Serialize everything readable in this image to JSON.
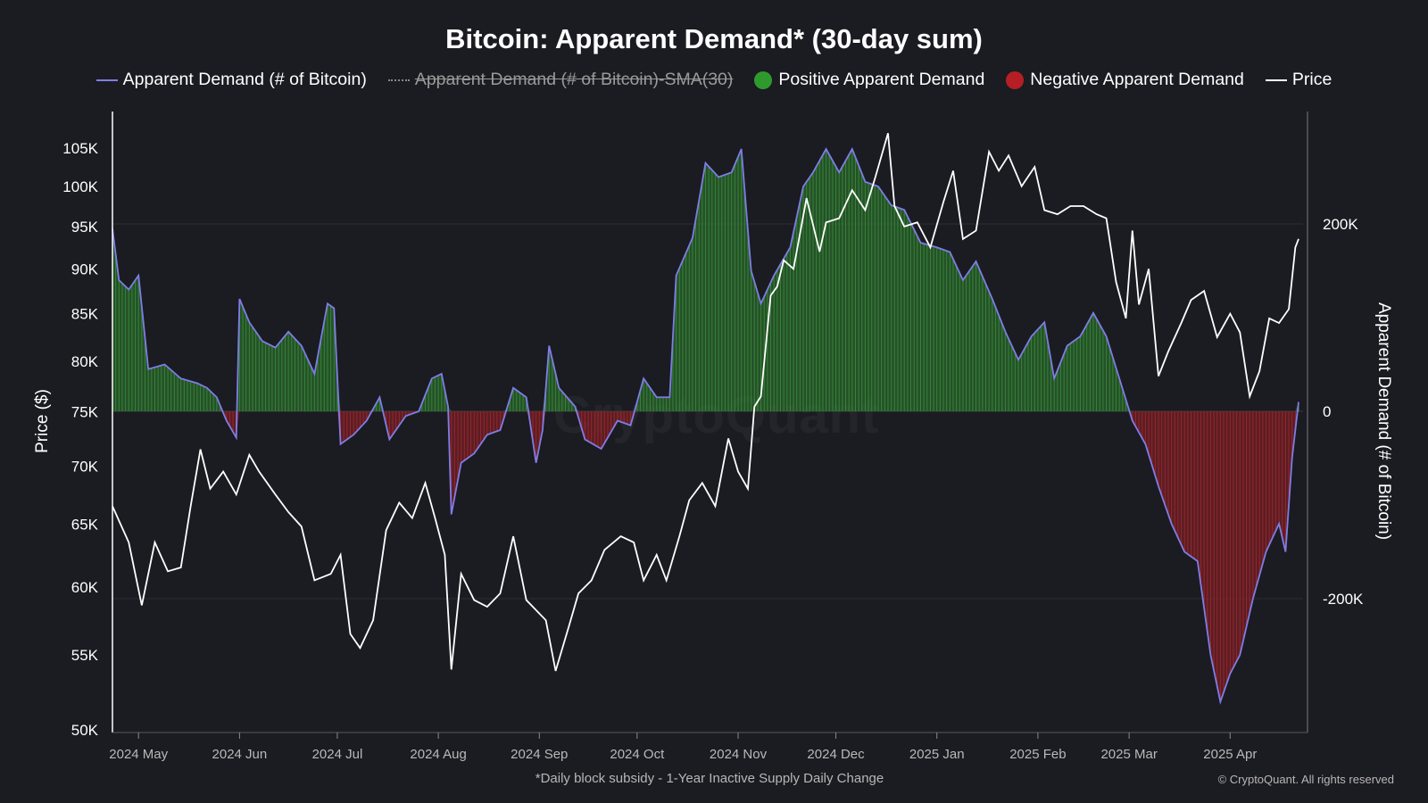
{
  "chart_data": {
    "type": "line",
    "title": "Bitcoin: Apparent Demand* (30-day sum)",
    "legend": {
      "placement": "top-center",
      "items": [
        {
          "label": "Apparent Demand (# of Bitcoin)",
          "kind": "line",
          "color": "#7f7de6",
          "enabled": true
        },
        {
          "label": "Apparent Demand (# of Bitcoin)-SMA(30)",
          "kind": "dashed",
          "color": "#8a8a8a",
          "enabled": false
        },
        {
          "label": "Positive Apparent Demand",
          "kind": "dot",
          "color": "#2e9a2e",
          "enabled": true
        },
        {
          "label": "Negative Apparent Demand",
          "kind": "dot",
          "color": "#b51f24",
          "enabled": true
        },
        {
          "label": "Price",
          "kind": "line",
          "color": "#ffffff",
          "enabled": true
        }
      ]
    },
    "x_tick_labels": [
      "2024 May",
      "2024 Jun",
      "2024 Jul",
      "2024 Aug",
      "2024 Sep",
      "2024 Oct",
      "2024 Nov",
      "2024 Dec",
      "2025 Jan",
      "2025 Feb",
      "2025 Mar",
      "2025 Apr"
    ],
    "x_tick_dates": [
      "2024-05-01",
      "2024-06-01",
      "2024-07-01",
      "2024-08-01",
      "2024-09-01",
      "2024-10-01",
      "2024-11-01",
      "2024-12-01",
      "2025-01-01",
      "2025-02-01",
      "2025-03-01",
      "2025-04-01"
    ],
    "x_range": [
      "2024-04-23",
      "2025-04-22"
    ],
    "left_axis": {
      "label": "Price ($)",
      "scale": "log",
      "range": [
        50000,
        110000
      ],
      "ticks": [
        50000,
        55000,
        60000,
        65000,
        70000,
        75000,
        80000,
        85000,
        90000,
        95000,
        100000,
        105000
      ],
      "tick_labels": [
        "50K",
        "55K",
        "60K",
        "65K",
        "70K",
        "75K",
        "80K",
        "85K",
        "90K",
        "95K",
        "100K",
        "105K"
      ]
    },
    "right_axis": {
      "label": "Apparent Demand (# of Bitcoin)",
      "scale": "linear",
      "range": [
        -340000,
        320000
      ],
      "ticks": [
        200000,
        0,
        -200000
      ],
      "tick_labels": [
        "200K",
        "0",
        "-200K"
      ]
    },
    "grid": true,
    "series": [
      {
        "name": "Price",
        "axis": "left",
        "color": "#ffffff",
        "points": [
          [
            "2024-04-23",
            66500
          ],
          [
            "2024-04-28",
            63500
          ],
          [
            "2024-05-02",
            58600
          ],
          [
            "2024-05-06",
            63500
          ],
          [
            "2024-05-10",
            61200
          ],
          [
            "2024-05-14",
            61500
          ],
          [
            "2024-05-17",
            66500
          ],
          [
            "2024-05-20",
            71500
          ],
          [
            "2024-05-23",
            68000
          ],
          [
            "2024-05-27",
            69500
          ],
          [
            "2024-05-31",
            67500
          ],
          [
            "2024-06-04",
            71000
          ],
          [
            "2024-06-07",
            69500
          ],
          [
            "2024-06-12",
            67500
          ],
          [
            "2024-06-16",
            66000
          ],
          [
            "2024-06-20",
            64800
          ],
          [
            "2024-06-24",
            60500
          ],
          [
            "2024-06-29",
            61000
          ],
          [
            "2024-07-02",
            62500
          ],
          [
            "2024-07-05",
            56500
          ],
          [
            "2024-07-08",
            55500
          ],
          [
            "2024-07-12",
            57500
          ],
          [
            "2024-07-16",
            64500
          ],
          [
            "2024-07-20",
            66800
          ],
          [
            "2024-07-24",
            65500
          ],
          [
            "2024-07-28",
            68500
          ],
          [
            "2024-07-31",
            65500
          ],
          [
            "2024-08-03",
            62500
          ],
          [
            "2024-08-05",
            54000
          ],
          [
            "2024-08-08",
            61000
          ],
          [
            "2024-08-12",
            59000
          ],
          [
            "2024-08-16",
            58500
          ],
          [
            "2024-08-20",
            59500
          ],
          [
            "2024-08-24",
            64000
          ],
          [
            "2024-08-28",
            59000
          ],
          [
            "2024-09-03",
            57500
          ],
          [
            "2024-09-06",
            53900
          ],
          [
            "2024-09-10",
            57000
          ],
          [
            "2024-09-13",
            59500
          ],
          [
            "2024-09-17",
            60500
          ],
          [
            "2024-09-21",
            62900
          ],
          [
            "2024-09-26",
            64000
          ],
          [
            "2024-09-30",
            63500
          ],
          [
            "2024-10-03",
            60500
          ],
          [
            "2024-10-07",
            62500
          ],
          [
            "2024-10-10",
            60500
          ],
          [
            "2024-10-14",
            64000
          ],
          [
            "2024-10-17",
            67000
          ],
          [
            "2024-10-21",
            68500
          ],
          [
            "2024-10-25",
            66500
          ],
          [
            "2024-10-29",
            72500
          ],
          [
            "2024-11-01",
            69500
          ],
          [
            "2024-11-04",
            68000
          ],
          [
            "2024-11-06",
            75500
          ],
          [
            "2024-11-08",
            76500
          ],
          [
            "2024-11-11",
            87000
          ],
          [
            "2024-11-13",
            88000
          ],
          [
            "2024-11-15",
            91000
          ],
          [
            "2024-11-18",
            90000
          ],
          [
            "2024-11-22",
            98500
          ],
          [
            "2024-11-26",
            92000
          ],
          [
            "2024-11-28",
            95500
          ],
          [
            "2024-12-02",
            96000
          ],
          [
            "2024-12-06",
            99500
          ],
          [
            "2024-12-10",
            97000
          ],
          [
            "2024-12-13",
            101000
          ],
          [
            "2024-12-17",
            107000
          ],
          [
            "2024-12-19",
            97500
          ],
          [
            "2024-12-22",
            95000
          ],
          [
            "2024-12-26",
            95500
          ],
          [
            "2024-12-30",
            92500
          ],
          [
            "2025-01-03",
            98000
          ],
          [
            "2025-01-06",
            102000
          ],
          [
            "2025-01-09",
            93500
          ],
          [
            "2025-01-13",
            94500
          ],
          [
            "2025-01-17",
            104500
          ],
          [
            "2025-01-20",
            102000
          ],
          [
            "2025-01-23",
            104000
          ],
          [
            "2025-01-27",
            100000
          ],
          [
            "2025-01-31",
            102500
          ],
          [
            "2025-02-03",
            97000
          ],
          [
            "2025-02-07",
            96500
          ],
          [
            "2025-02-11",
            97500
          ],
          [
            "2025-02-15",
            97500
          ],
          [
            "2025-02-19",
            96500
          ],
          [
            "2025-02-22",
            96000
          ],
          [
            "2025-02-25",
            88500
          ],
          [
            "2025-02-28",
            84500
          ],
          [
            "2025-03-02",
            94500
          ],
          [
            "2025-03-04",
            86000
          ],
          [
            "2025-03-07",
            90000
          ],
          [
            "2025-03-10",
            78500
          ],
          [
            "2025-03-13",
            81000
          ],
          [
            "2025-03-17",
            84000
          ],
          [
            "2025-03-20",
            86500
          ],
          [
            "2025-03-24",
            87500
          ],
          [
            "2025-03-28",
            82500
          ],
          [
            "2025-04-01",
            85000
          ],
          [
            "2025-04-04",
            83000
          ],
          [
            "2025-04-07",
            76500
          ],
          [
            "2025-04-10",
            79000
          ],
          [
            "2025-04-13",
            84500
          ],
          [
            "2025-04-16",
            84000
          ],
          [
            "2025-04-19",
            85500
          ],
          [
            "2025-04-21",
            92500
          ],
          [
            "2025-04-22",
            93500
          ]
        ]
      },
      {
        "name": "Apparent Demand (# of Bitcoin)",
        "axis": "right",
        "color": "#7f7de6",
        "points": [
          [
            "2024-04-23",
            195000
          ],
          [
            "2024-04-25",
            140000
          ],
          [
            "2024-04-28",
            130000
          ],
          [
            "2024-05-01",
            145000
          ],
          [
            "2024-05-04",
            45000
          ],
          [
            "2024-05-09",
            50000
          ],
          [
            "2024-05-14",
            35000
          ],
          [
            "2024-05-19",
            30000
          ],
          [
            "2024-05-22",
            25000
          ],
          [
            "2024-05-25",
            15000
          ],
          [
            "2024-05-28",
            -10000
          ],
          [
            "2024-05-31",
            -28000
          ],
          [
            "2024-06-01",
            120000
          ],
          [
            "2024-06-04",
            95000
          ],
          [
            "2024-06-08",
            75000
          ],
          [
            "2024-06-12",
            68000
          ],
          [
            "2024-06-16",
            85000
          ],
          [
            "2024-06-20",
            70000
          ],
          [
            "2024-06-24",
            40000
          ],
          [
            "2024-06-28",
            115000
          ],
          [
            "2024-06-30",
            110000
          ],
          [
            "2024-07-02",
            -35000
          ],
          [
            "2024-07-06",
            -25000
          ],
          [
            "2024-07-10",
            -10000
          ],
          [
            "2024-07-14",
            15000
          ],
          [
            "2024-07-17",
            -30000
          ],
          [
            "2024-07-22",
            -5000
          ],
          [
            "2024-07-26",
            0
          ],
          [
            "2024-07-30",
            35000
          ],
          [
            "2024-08-02",
            40000
          ],
          [
            "2024-08-04",
            5000
          ],
          [
            "2024-08-05",
            -110000
          ],
          [
            "2024-08-08",
            -55000
          ],
          [
            "2024-08-12",
            -45000
          ],
          [
            "2024-08-16",
            -25000
          ],
          [
            "2024-08-20",
            -20000
          ],
          [
            "2024-08-24",
            25000
          ],
          [
            "2024-08-28",
            15000
          ],
          [
            "2024-08-31",
            -55000
          ],
          [
            "2024-09-02",
            -20000
          ],
          [
            "2024-09-04",
            70000
          ],
          [
            "2024-09-07",
            25000
          ],
          [
            "2024-09-12",
            5000
          ],
          [
            "2024-09-15",
            -30000
          ],
          [
            "2024-09-20",
            -40000
          ],
          [
            "2024-09-25",
            -10000
          ],
          [
            "2024-09-29",
            -15000
          ],
          [
            "2024-10-03",
            35000
          ],
          [
            "2024-10-07",
            15000
          ],
          [
            "2024-10-11",
            15000
          ],
          [
            "2024-10-13",
            145000
          ],
          [
            "2024-10-18",
            185000
          ],
          [
            "2024-10-22",
            265000
          ],
          [
            "2024-10-26",
            250000
          ],
          [
            "2024-10-30",
            255000
          ],
          [
            "2024-11-02",
            280000
          ],
          [
            "2024-11-05",
            150000
          ],
          [
            "2024-11-08",
            115000
          ],
          [
            "2024-11-12",
            145000
          ],
          [
            "2024-11-17",
            175000
          ],
          [
            "2024-11-21",
            240000
          ],
          [
            "2024-11-24",
            255000
          ],
          [
            "2024-11-28",
            280000
          ],
          [
            "2024-12-02",
            255000
          ],
          [
            "2024-12-06",
            280000
          ],
          [
            "2024-12-10",
            245000
          ],
          [
            "2024-12-14",
            240000
          ],
          [
            "2024-12-18",
            220000
          ],
          [
            "2024-12-22",
            215000
          ],
          [
            "2024-12-27",
            180000
          ],
          [
            "2025-01-01",
            175000
          ],
          [
            "2025-01-05",
            170000
          ],
          [
            "2025-01-09",
            140000
          ],
          [
            "2025-01-13",
            160000
          ],
          [
            "2025-01-18",
            120000
          ],
          [
            "2025-01-22",
            85000
          ],
          [
            "2025-01-26",
            55000
          ],
          [
            "2025-01-30",
            80000
          ],
          [
            "2025-02-03",
            95000
          ],
          [
            "2025-02-06",
            35000
          ],
          [
            "2025-02-10",
            70000
          ],
          [
            "2025-02-14",
            80000
          ],
          [
            "2025-02-18",
            105000
          ],
          [
            "2025-02-22",
            80000
          ],
          [
            "2025-02-26",
            35000
          ],
          [
            "2025-03-02",
            -10000
          ],
          [
            "2025-03-06",
            -35000
          ],
          [
            "2025-03-10",
            -80000
          ],
          [
            "2025-03-14",
            -120000
          ],
          [
            "2025-03-18",
            -150000
          ],
          [
            "2025-03-22",
            -160000
          ],
          [
            "2025-03-26",
            -260000
          ],
          [
            "2025-03-29",
            -310000
          ],
          [
            "2025-04-01",
            -280000
          ],
          [
            "2025-04-04",
            -260000
          ],
          [
            "2025-04-08",
            -200000
          ],
          [
            "2025-04-12",
            -150000
          ],
          [
            "2025-04-16",
            -120000
          ],
          [
            "2025-04-18",
            -150000
          ],
          [
            "2025-04-20",
            -50000
          ],
          [
            "2025-04-22",
            10000
          ]
        ]
      }
    ]
  },
  "footnote": "*Daily block subsidy - 1-Year Inactive Supply Daily Change",
  "copyright": "© CryptoQuant. All rights reserved",
  "watermark": "CryptoQuant",
  "colors": {
    "background": "#1b1b22",
    "positive_fill": "#2e7d2e",
    "positive_bar": "#4fb34f",
    "negative_fill": "#8f1f24",
    "negative_bar": "#c53a3f",
    "demand_line": "#7f7de6",
    "price_line": "#ffffff",
    "grid": "#2c2c34",
    "axis_text": "#ffffff",
    "tick_text": "#b9b9b9"
  }
}
